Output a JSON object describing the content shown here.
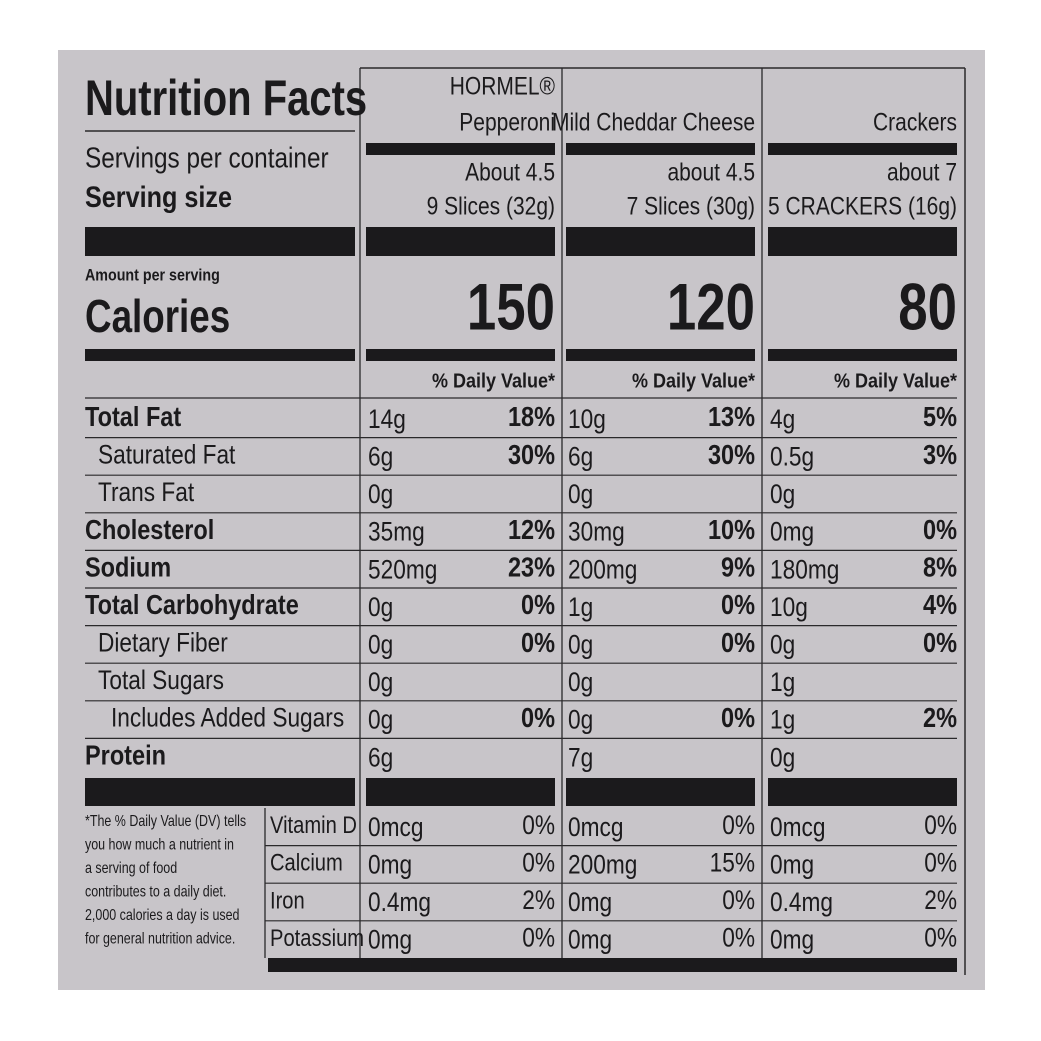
{
  "title": "Nutrition Facts",
  "servings_label": "Servings per container",
  "serving_size_label": "Serving size",
  "amount_label": "Amount per serving",
  "calories_label": "Calories",
  "nutrient_labels": [
    "Total Fat",
    "Saturated Fat",
    "Trans Fat",
    "Cholesterol",
    "Sodium",
    "Total Carbohydrate",
    "Dietary Fiber",
    "Total Sugars",
    "Includes Added Sugars",
    "Protein"
  ],
  "vitamin_labels": [
    "Vitamin D",
    "Calcium",
    "Iron",
    "Potassium"
  ],
  "footnote": [
    "*The % Daily Value (DV) tells",
    "you how much a nutrient in",
    "a serving of food",
    "contributes to a daily diet.",
    "2,000 calories a day is used",
    "for general nutrition advice."
  ],
  "columns": [
    {
      "name": [
        "HORMEL®",
        "Pepperoni"
      ],
      "servings": "About 4.5",
      "serving_size": "9 Slices (32g)",
      "calories": "150",
      "dv_header": "% Daily Value*",
      "nutrients": [
        [
          "14g",
          "18%"
        ],
        [
          "6g",
          "30%"
        ],
        [
          "0g",
          null
        ],
        [
          "35mg",
          "12%"
        ],
        [
          "520mg",
          "23%"
        ],
        [
          "0g",
          "0%"
        ],
        [
          "0g",
          "0%"
        ],
        [
          "0g",
          null
        ],
        [
          "0g",
          "0%"
        ],
        [
          "6g",
          null
        ]
      ],
      "vitamins": [
        [
          "0mcg",
          "0%"
        ],
        [
          "0mg",
          "0%"
        ],
        [
          "0.4mg",
          "2%"
        ],
        [
          "0mg",
          "0%"
        ]
      ]
    },
    {
      "name": [
        "Mild Cheddar Cheese"
      ],
      "servings": "about 4.5",
      "serving_size": "7 Slices (30g)",
      "calories": "120",
      "dv_header": "% Daily Value*",
      "nutrients": [
        [
          "10g",
          "13%"
        ],
        [
          "6g",
          "30%"
        ],
        [
          "0g",
          null
        ],
        [
          "30mg",
          "10%"
        ],
        [
          "200mg",
          "9%"
        ],
        [
          "1g",
          "0%"
        ],
        [
          "0g",
          "0%"
        ],
        [
          "0g",
          null
        ],
        [
          "0g",
          "0%"
        ],
        [
          "7g",
          null
        ]
      ],
      "vitamins": [
        [
          "0mcg",
          "0%"
        ],
        [
          "200mg",
          "15%"
        ],
        [
          "0mg",
          "0%"
        ],
        [
          "0mg",
          "0%"
        ]
      ]
    },
    {
      "name": [
        "Crackers"
      ],
      "servings": "about 7",
      "serving_size": "5 CRACKERS (16g)",
      "calories": "80",
      "dv_header": "% Daily Value*",
      "nutrients": [
        [
          "4g",
          "5%"
        ],
        [
          "0.5g",
          "3%"
        ],
        [
          "0g",
          null
        ],
        [
          "0mg",
          "0%"
        ],
        [
          "180mg",
          "8%"
        ],
        [
          "10g",
          "4%"
        ],
        [
          "0g",
          "0%"
        ],
        [
          "1g",
          null
        ],
        [
          "1g",
          "2%"
        ],
        [
          "0g",
          null
        ]
      ],
      "vitamins": [
        [
          "0mcg",
          "0%"
        ],
        [
          "0mg",
          "0%"
        ],
        [
          "0.4mg",
          "2%"
        ],
        [
          "0mg",
          "0%"
        ]
      ]
    }
  ]
}
